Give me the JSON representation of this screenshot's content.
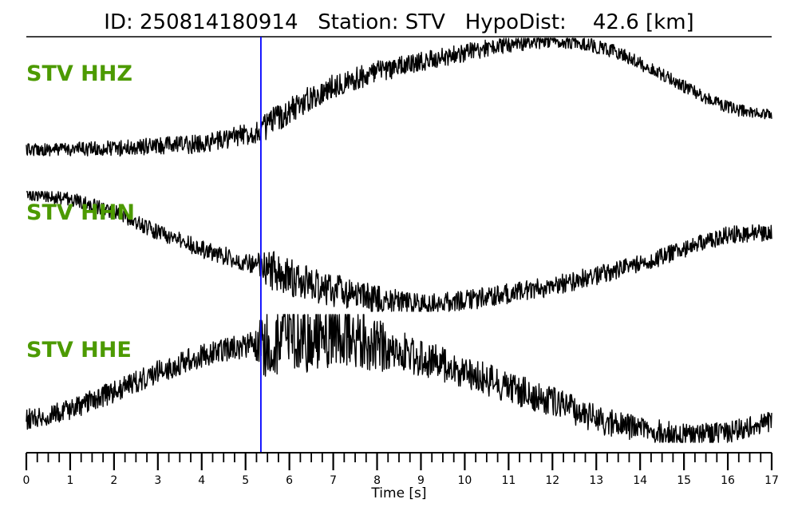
{
  "header": {
    "title": "ID: 250814180914   Station: STV   HypoDist:    42.6 [km]"
  },
  "colors": {
    "trace": "#000000",
    "label": "#4c9a00",
    "pick_line": "#0000ff",
    "axis": "#000000"
  },
  "chart_data": {
    "type": "line",
    "title": "ID: 250814180914   Station: STV   HypoDist:    42.6 [km]",
    "xlabel": "Time [s]",
    "ylabel": "",
    "xlim": [
      0,
      17
    ],
    "x_ticks": [
      0,
      1,
      2,
      3,
      4,
      5,
      6,
      7,
      8,
      9,
      10,
      11,
      12,
      13,
      14,
      15,
      16,
      17
    ],
    "x_tick_labels": [
      "0",
      "1",
      "2",
      "3",
      "4",
      "5",
      "6",
      "7",
      "8",
      "9",
      "10",
      "11",
      "12",
      "13",
      "14",
      "15",
      "16",
      "17"
    ],
    "minor_tick_step": 0.25,
    "grid": false,
    "pick_time": 5.35,
    "series": [
      {
        "name": "STV HHZ",
        "trend": [
          [
            0,
            0.93
          ],
          [
            2.0,
            0.92
          ],
          [
            4.0,
            0.88
          ],
          [
            5.3,
            0.78
          ],
          [
            6.0,
            0.6
          ],
          [
            7.0,
            0.4
          ],
          [
            8.0,
            0.28
          ],
          [
            9.0,
            0.2
          ],
          [
            10.0,
            0.12
          ],
          [
            11.0,
            0.05
          ],
          [
            12.0,
            0.02
          ],
          [
            12.6,
            0.03
          ],
          [
            13.5,
            0.12
          ],
          [
            14.5,
            0.3
          ],
          [
            15.5,
            0.5
          ],
          [
            16.2,
            0.6
          ],
          [
            17.0,
            0.64
          ]
        ],
        "noise": [
          [
            0,
            0.05
          ],
          [
            5.2,
            0.09
          ],
          [
            5.5,
            0.12
          ],
          [
            7.0,
            0.1
          ],
          [
            12.0,
            0.06
          ],
          [
            17.0,
            0.05
          ]
        ]
      },
      {
        "name": "STV HHN",
        "trend": [
          [
            0,
            0.02
          ],
          [
            1.0,
            0.06
          ],
          [
            2.0,
            0.17
          ],
          [
            3.0,
            0.34
          ],
          [
            4.0,
            0.48
          ],
          [
            5.3,
            0.62
          ],
          [
            6.5,
            0.78
          ],
          [
            8.0,
            0.9
          ],
          [
            9.0,
            0.94
          ],
          [
            10.0,
            0.91
          ],
          [
            11.0,
            0.85
          ],
          [
            12.0,
            0.79
          ],
          [
            13.0,
            0.7
          ],
          [
            14.0,
            0.6
          ],
          [
            15.0,
            0.48
          ],
          [
            16.0,
            0.36
          ],
          [
            17.0,
            0.34
          ]
        ],
        "noise": [
          [
            0,
            0.05
          ],
          [
            5.2,
            0.08
          ],
          [
            5.5,
            0.17
          ],
          [
            7.0,
            0.14
          ],
          [
            9.0,
            0.09
          ],
          [
            17.0,
            0.07
          ]
        ]
      },
      {
        "name": "STV HHE",
        "trend": [
          [
            0,
            0.82
          ],
          [
            1.0,
            0.75
          ],
          [
            2.0,
            0.6
          ],
          [
            3.0,
            0.45
          ],
          [
            4.0,
            0.32
          ],
          [
            5.3,
            0.22
          ],
          [
            6.0,
            0.18
          ],
          [
            7.0,
            0.15
          ],
          [
            8.0,
            0.24
          ],
          [
            9.0,
            0.34
          ],
          [
            10.0,
            0.44
          ],
          [
            11.0,
            0.57
          ],
          [
            12.0,
            0.68
          ],
          [
            13.0,
            0.82
          ],
          [
            14.0,
            0.9
          ],
          [
            15.0,
            0.95
          ],
          [
            16.0,
            0.92
          ],
          [
            17.0,
            0.84
          ]
        ],
        "noise": [
          [
            0,
            0.08
          ],
          [
            5.2,
            0.1
          ],
          [
            5.5,
            0.32
          ],
          [
            7.5,
            0.24
          ],
          [
            9.0,
            0.14
          ],
          [
            17.0,
            0.08
          ]
        ]
      }
    ]
  }
}
